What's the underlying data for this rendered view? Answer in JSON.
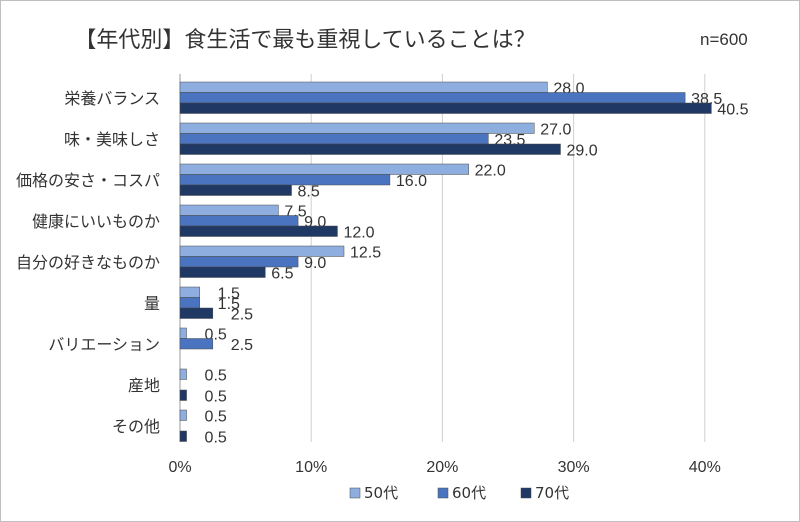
{
  "title": "【年代別】食生活で最も重視していることは？",
  "sample_size": "n=600",
  "chart_data": {
    "type": "bar",
    "orientation": "horizontal",
    "categories": [
      "栄養バランス",
      "味・美味しさ",
      "価格の安さ・コスパ",
      "健康にいいものか",
      "自分の好きなものか",
      "量",
      "バリエーション",
      "産地",
      "その他"
    ],
    "series": [
      {
        "name": "50代",
        "color": "#8eaee0",
        "values": [
          28.0,
          27.0,
          22.0,
          7.5,
          12.5,
          1.5,
          0.5,
          0.5,
          0.5
        ]
      },
      {
        "name": "60代",
        "color": "#4a74bf",
        "values": [
          38.5,
          23.5,
          16.0,
          9.0,
          9.0,
          1.5,
          2.5,
          0,
          0
        ]
      },
      {
        "name": "70代",
        "color": "#1f3864",
        "values": [
          40.5,
          29.0,
          8.5,
          12.0,
          6.5,
          2.5,
          0,
          0.5,
          0.5
        ]
      }
    ],
    "data_labels": [
      [
        "28.0",
        "38.5",
        "40.5"
      ],
      [
        "27.0",
        "23.5",
        "29.0"
      ],
      [
        "22.0",
        "16.0",
        "8.5"
      ],
      [
        "7.5",
        "9.0",
        "12.0"
      ],
      [
        "12.5",
        "9.0",
        "6.5"
      ],
      [
        "1.5",
        "1.5",
        "2.5"
      ],
      [
        "0.5",
        "2.5",
        ""
      ],
      [
        "0.5",
        "",
        "0.5"
      ],
      [
        "0.5",
        "",
        "0.5"
      ]
    ],
    "xlim": [
      0,
      45
    ],
    "xticks": [
      0,
      10,
      20,
      30,
      40
    ],
    "xtick_labels": [
      "0%",
      "10%",
      "20%",
      "30%",
      "40%"
    ],
    "grid": true,
    "legend_position": "bottom"
  }
}
